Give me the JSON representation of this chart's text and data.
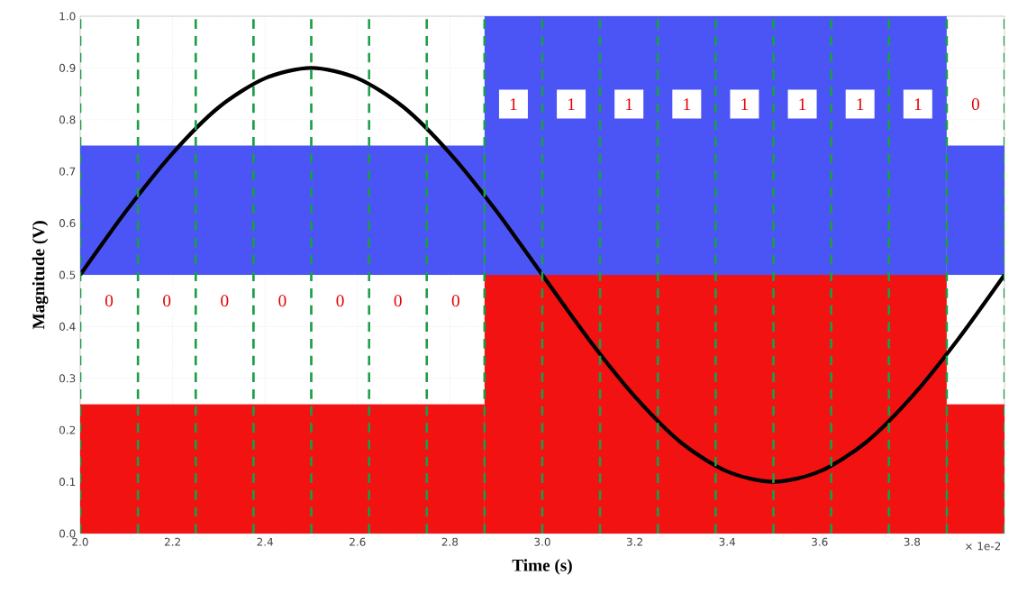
{
  "chart_data": {
    "type": "bar",
    "xlabel": "Time (s)",
    "ylabel": "Magnitude (V)",
    "xlim": [
      2.0,
      4.0
    ],
    "ylim": [
      0.0,
      1.0
    ],
    "xticks": [
      {
        "value": 2.0,
        "label": "2.0"
      },
      {
        "value": 2.2,
        "label": "2.2"
      },
      {
        "value": 2.4,
        "label": "2.4"
      },
      {
        "value": 2.6,
        "label": "2.6"
      },
      {
        "value": 2.8,
        "label": "2.8"
      },
      {
        "value": 3.0,
        "label": "3.0"
      },
      {
        "value": 3.2,
        "label": "3.2"
      },
      {
        "value": 3.4,
        "label": "3.4"
      },
      {
        "value": 3.6,
        "label": "3.6"
      },
      {
        "value": 3.8,
        "label": "3.8"
      }
    ],
    "yticks": [
      {
        "value": 0.0,
        "label": "0.0"
      },
      0.1,
      0.2,
      0.3,
      0.4,
      0.5,
      0.6,
      0.7,
      0.8,
      0.9,
      {
        "value": 1.0,
        "label": "1.0"
      }
    ],
    "grid": true,
    "series": [
      {
        "color": "#4b55f5",
        "x": [
          2.4375,
          3.375,
          3.9375
        ],
        "base": [
          0.5,
          0.5,
          0.5
        ],
        "values": [
          0.25,
          0.5,
          0.25
        ]
      },
      {
        "color": "#f21212",
        "x": [
          2.4375,
          3.375,
          3.9375
        ],
        "base": [
          0.0,
          0.0,
          0.0
        ],
        "values": [
          0.25,
          0.5,
          0.25
        ]
      },
      {
        "type": "line",
        "color": "#000000",
        "x": [
          2.0,
          2.1,
          2.2,
          2.3,
          2.4,
          2.5,
          2.6,
          2.7,
          2.8,
          2.9,
          3.0,
          3.1,
          3.2,
          3.3,
          3.4,
          3.5,
          3.6,
          3.7,
          3.8,
          3.9,
          4.0
        ],
        "values": [
          0.5,
          0.624,
          0.735,
          0.824,
          0.88,
          0.9,
          0.88,
          0.824,
          0.735,
          0.624,
          0.5,
          0.376,
          0.265,
          0.176,
          0.12,
          0.1,
          0.12,
          0.176,
          0.265,
          0.376,
          0.5
        ]
      }
    ],
    "ref_lines": [
      {
        "axis": "x",
        "value": 2.0,
        "color": "#1a9e48",
        "line_style": "dashed"
      },
      {
        "axis": "x",
        "value": 2.125,
        "color": "#1a9e48",
        "line_style": "dashed"
      },
      {
        "axis": "x",
        "value": 2.25,
        "color": "#1a9e48",
        "line_style": "dashed"
      },
      {
        "axis": "x",
        "value": 2.375,
        "color": "#1a9e48",
        "line_style": "dashed"
      },
      {
        "axis": "x",
        "value": 2.5,
        "color": "#1a9e48",
        "line_style": "dashed"
      },
      {
        "axis": "x",
        "value": 2.625,
        "color": "#1a9e48",
        "line_style": "dashed"
      },
      {
        "axis": "x",
        "value": 2.75,
        "color": "#1a9e48",
        "line_style": "dashed"
      },
      {
        "axis": "x",
        "value": 2.875,
        "color": "#1a9e48",
        "line_style": "dashed"
      },
      {
        "axis": "x",
        "value": 3.0,
        "color": "#1a9e48",
        "line_style": "dashed"
      },
      {
        "axis": "x",
        "value": 3.125,
        "color": "#1a9e48",
        "line_style": "dashed"
      },
      {
        "axis": "x",
        "value": 3.25,
        "color": "#1a9e48",
        "line_style": "dashed"
      },
      {
        "axis": "x",
        "value": 3.375,
        "color": "#1a9e48",
        "line_style": "dashed"
      },
      {
        "axis": "x",
        "value": 3.5,
        "color": "#1a9e48",
        "line_style": "dashed"
      },
      {
        "axis": "x",
        "value": 3.625,
        "color": "#1a9e48",
        "line_style": "dashed"
      },
      {
        "axis": "x",
        "value": 3.75,
        "color": "#1a9e48",
        "line_style": "dashed"
      },
      {
        "axis": "x",
        "value": 3.875,
        "color": "#1a9e48",
        "line_style": "dashed"
      },
      {
        "axis": "x",
        "value": 4.0,
        "color": "#1a9e48",
        "line_style": "dashed"
      }
    ],
    "annotations": [
      "× 1e-2",
      {
        "text": "0",
        "x": 2.0625,
        "y": 0.45
      },
      {
        "text": "0",
        "x": 2.1875,
        "y": 0.45
      },
      {
        "text": "0",
        "x": 2.3125,
        "y": 0.45
      },
      {
        "text": "0",
        "x": 2.4375,
        "y": 0.45
      },
      {
        "text": "0",
        "x": 2.5625,
        "y": 0.45
      },
      {
        "text": "0",
        "x": 2.6875,
        "y": 0.45
      },
      {
        "text": "0",
        "x": 2.8125,
        "y": 0.45
      },
      {
        "text": "1",
        "x": 2.9375,
        "y": 0.83
      },
      {
        "text": "1",
        "x": 3.0625,
        "y": 0.83
      },
      {
        "text": "1",
        "x": 3.1875,
        "y": 0.83
      },
      {
        "text": "1",
        "x": 3.3125,
        "y": 0.83
      },
      {
        "text": "1",
        "x": 3.4375,
        "y": 0.83
      },
      {
        "text": "1",
        "x": 3.5625,
        "y": 0.83
      },
      {
        "text": "1",
        "x": 3.6875,
        "y": 0.83
      },
      {
        "text": "1",
        "x": 3.8125,
        "y": 0.83
      },
      {
        "text": "0",
        "x": 3.9375,
        "y": 0.83
      }
    ]
  }
}
